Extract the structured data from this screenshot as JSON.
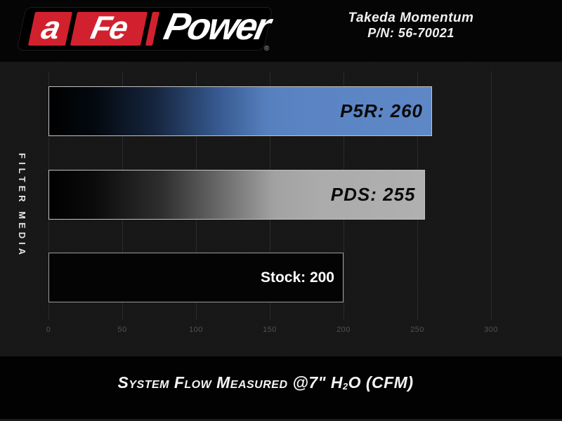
{
  "header": {
    "logo": {
      "segment_a": "a",
      "segment_fe": "Fe",
      "brand": "Power",
      "registered_mark": "®",
      "red": "#d2212e"
    },
    "product": {
      "line1": "Takeda Momentum",
      "line2": "P/N: 56-70021"
    }
  },
  "chart_data": {
    "type": "bar",
    "orientation": "horizontal",
    "categories": [
      "P5R",
      "PDS",
      "Stock"
    ],
    "values": [
      260,
      255,
      200
    ],
    "bar_labels": [
      "P5R: 260",
      "PDS: 255",
      "Stock: 200"
    ],
    "bar_colors": [
      "#5b84c4",
      "#ababab",
      "#040404"
    ],
    "bar_fill_style": "black-to-color fade, left to right",
    "ylabel": "FILTER MEDIA",
    "xlabel": "System Flow Measured @7\" H2O (CFM)",
    "x_ticks": [
      "0",
      "50",
      "100",
      "150",
      "200",
      "250",
      "300"
    ],
    "xlim": [
      0,
      300
    ],
    "grid": true,
    "legend": false,
    "background": "#141414"
  },
  "caption": {
    "pre": "System Flow Measured @7\" H",
    "sub": "2",
    "post": "O (CFM)"
  },
  "colors": {
    "brand_red": "#d2212e",
    "bar_blue": "#5b84c4",
    "bar_gray": "#ababab",
    "tick_gray": "#525252",
    "bar_border": "#c2c2c2"
  }
}
